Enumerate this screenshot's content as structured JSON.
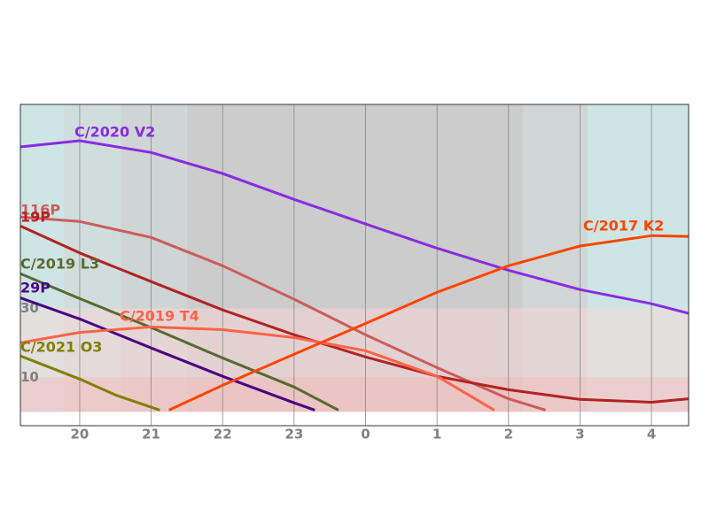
{
  "chart_data": {
    "type": "line",
    "xlim": [
      19.17,
      28.52
    ],
    "ylim": [
      -4,
      89
    ],
    "xticks": [
      20,
      21,
      22,
      23,
      {
        "value": 24,
        "label": "0"
      },
      {
        "value": 25,
        "label": "1"
      },
      {
        "value": 26,
        "label": "2"
      },
      {
        "value": 27,
        "label": "3"
      },
      {
        "value": 28,
        "label": "4"
      }
    ],
    "yticks": [
      10,
      30
    ],
    "grid": true,
    "sky_bands": [
      {
        "from": 19.17,
        "to": 19.77,
        "color": "#cde5e5"
      },
      {
        "from": 19.77,
        "to": 20.57,
        "color": "#d0dddd"
      },
      {
        "from": 20.57,
        "to": 21.5,
        "color": "#cfd4d4"
      },
      {
        "from": 21.5,
        "to": 26.2,
        "color": "#cccccc"
      },
      {
        "from": 26.2,
        "to": 27.1,
        "color": "#d0d6d6"
      },
      {
        "from": 27.1,
        "to": 28.52,
        "color": "#cde5e5"
      }
    ],
    "altitude_bands": [
      {
        "from": 10,
        "to": 30,
        "color": "rgba(255,215,215,0.45)"
      },
      {
        "from": 0,
        "to": 10,
        "color": "rgba(255,190,190,0.6)"
      }
    ],
    "series": [
      {
        "name": "C/2020 V2",
        "color": "#8a2be2",
        "x": [
          19.17,
          20,
          21,
          22,
          23,
          24,
          25,
          26,
          27,
          28,
          28.52
        ],
        "values": [
          76.7,
          78.5,
          75.1,
          69,
          61.5,
          54.4,
          47.4,
          41,
          35.4,
          31.3,
          28.5
        ]
      },
      {
        "name": "116P",
        "color": "#cd5c5c",
        "x": [
          19.17,
          20,
          21,
          22,
          23,
          24,
          25,
          26,
          26.52
        ],
        "values": [
          56.4,
          55.1,
          50.5,
          42.3,
          32.6,
          22.3,
          12.8,
          3.8,
          0.5
        ]
      },
      {
        "name": "19P",
        "color": "#b22222",
        "x": [
          19.17,
          20,
          21,
          22,
          23,
          24,
          25,
          26,
          27,
          28,
          28.52
        ],
        "values": [
          53.8,
          46,
          37.7,
          29.5,
          22.3,
          15.9,
          10.3,
          6.4,
          3.6,
          2.8,
          3.8
        ]
      },
      {
        "name": "C/2019 L3",
        "color": "#556b2f",
        "x": [
          19.17,
          20,
          21,
          22,
          23,
          23.62
        ],
        "values": [
          40,
          32.8,
          24.4,
          15.6,
          7.2,
          0.5
        ]
      },
      {
        "name": "29P",
        "color": "#4b0082",
        "x": [
          19.17,
          20,
          21,
          22,
          23,
          23.29
        ],
        "values": [
          33,
          26.9,
          18.5,
          10.3,
          2.6,
          0.5
        ]
      },
      {
        "name": "C/2019 T4",
        "color": "#ff6347",
        "x": [
          19.17,
          20,
          21,
          22,
          23,
          24,
          25,
          25.8
        ],
        "values": [
          20,
          23,
          24.6,
          23.8,
          21.5,
          17.7,
          10.3,
          0.5
        ]
      },
      {
        "name": "C/2021 O3",
        "color": "#808000",
        "x": [
          19.17,
          20,
          20.5,
          21.12
        ],
        "values": [
          16.2,
          9.5,
          4.9,
          0.5
        ]
      },
      {
        "name": "C/2017 K2",
        "color": "#ff4500",
        "x": [
          21.25,
          22,
          23,
          24,
          25,
          26,
          27,
          28,
          28.52
        ],
        "values": [
          0.5,
          7.7,
          16.7,
          25.6,
          34.6,
          42.3,
          48,
          51,
          50.8
        ]
      }
    ]
  }
}
